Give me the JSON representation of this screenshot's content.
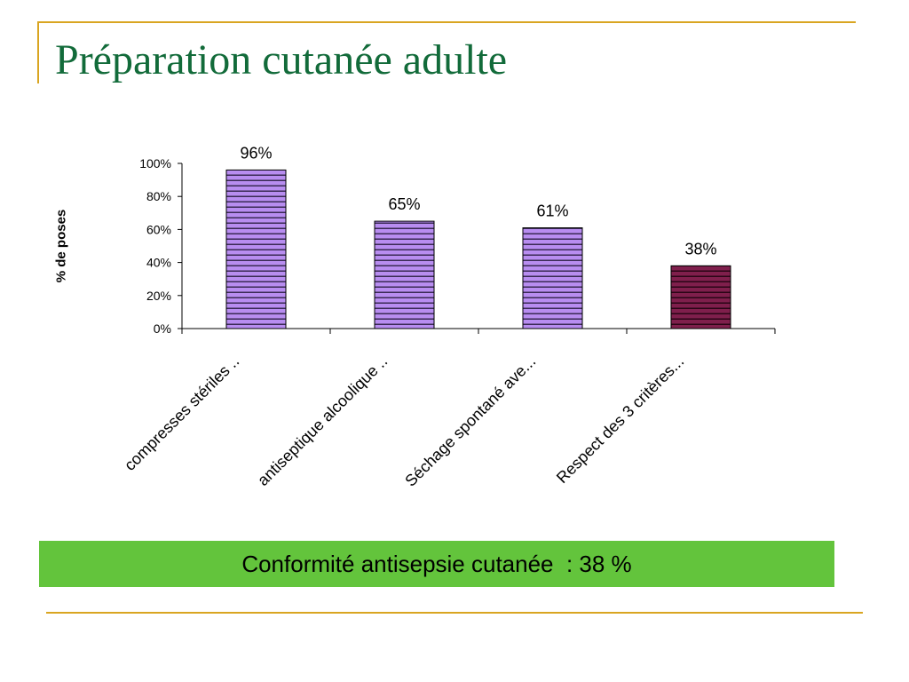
{
  "slide": {
    "title": "Préparation cutanée adulte",
    "banner_text": "Conformité antisepsie cutanée  : 38 %"
  },
  "colors": {
    "title": "#126b3a",
    "frame": "#d9a521",
    "bar_default": "#b88df0",
    "bar_highlight": "#7f1f4c",
    "banner": "#63c43c"
  },
  "chart_data": {
    "type": "bar",
    "ylabel": "% de poses",
    "xlabel": "",
    "ylim": [
      0,
      100
    ],
    "y_ticks": [
      "0%",
      "20%",
      "40%",
      "60%",
      "80%",
      "100%"
    ],
    "categories": [
      "compresses  stériles  ..",
      "antiseptique alcoolique  ..",
      "Séchage spontané ave...",
      "Respect  des 3 critères..."
    ],
    "values": [
      96,
      65,
      61,
      38
    ],
    "data_labels": [
      "96%",
      "65%",
      "61%",
      "38%"
    ],
    "highlight_index": 3,
    "grid": false,
    "legend": "none"
  }
}
